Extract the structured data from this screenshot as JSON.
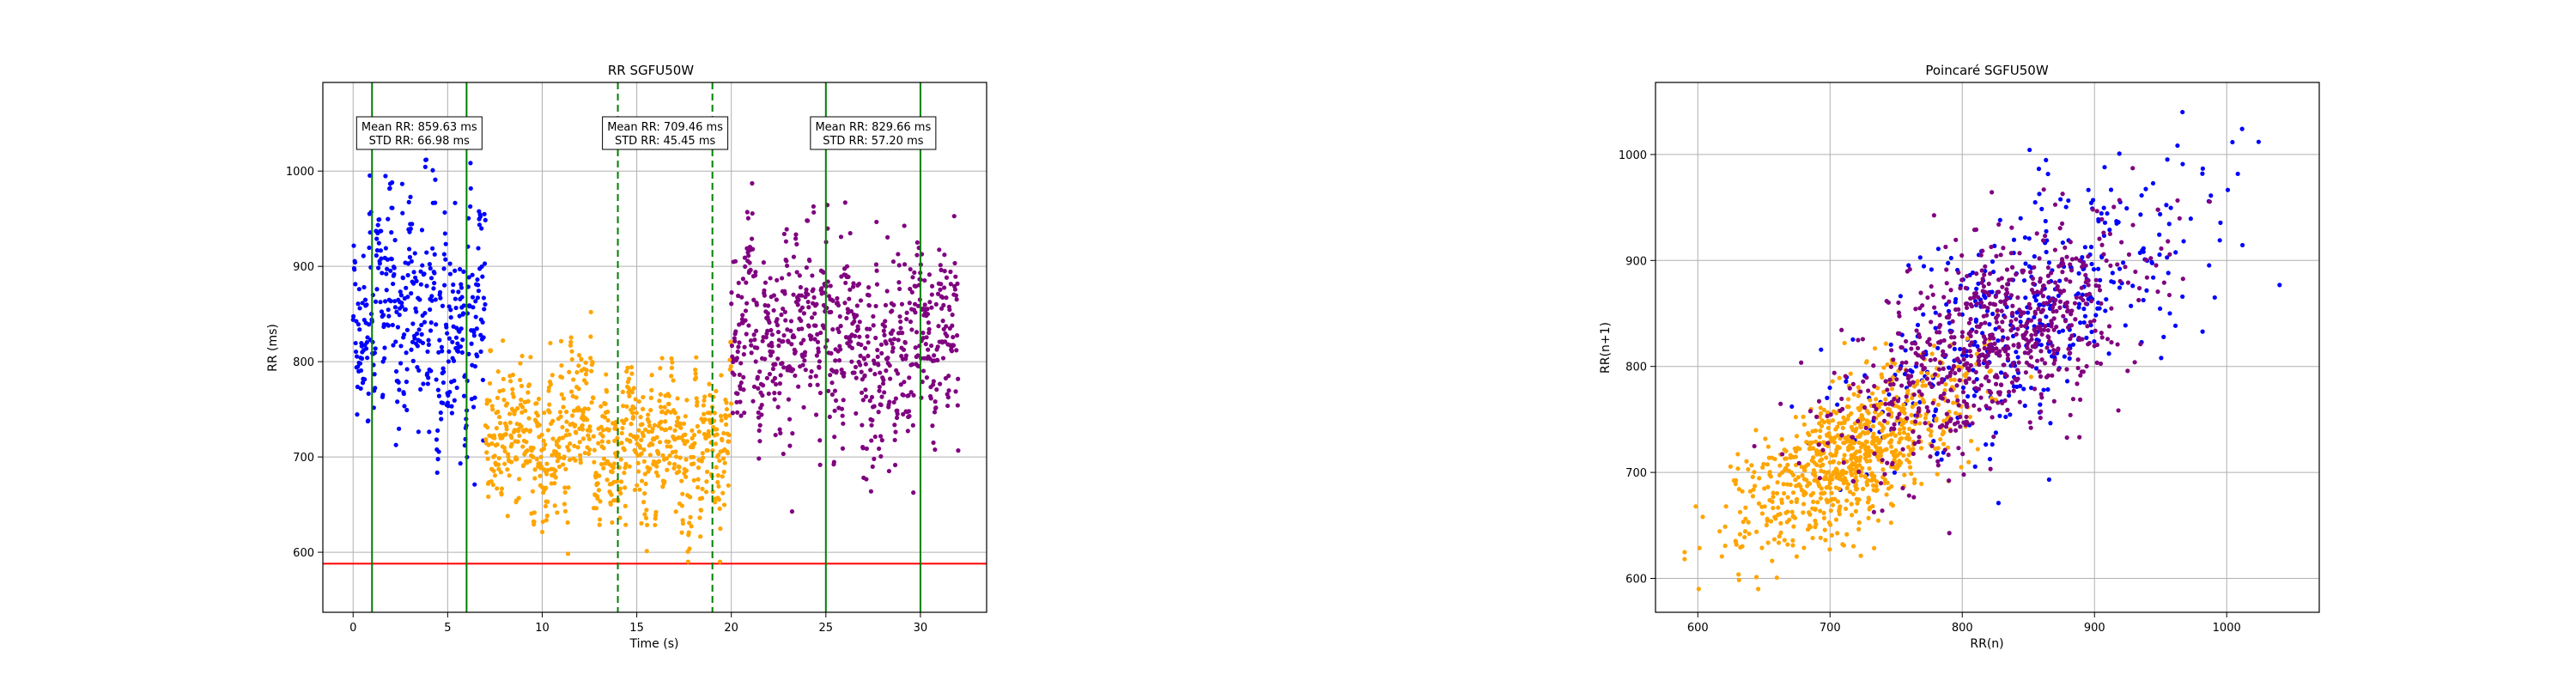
{
  "figure": {
    "background": "#ffffff"
  },
  "chart_data": [
    {
      "type": "scatter",
      "title": "RR SGFU50W",
      "xlabel": "Time (s)",
      "ylabel": "RR (ms)",
      "xlim": [
        -1.6,
        33.5
      ],
      "ylim": [
        537,
        1093
      ],
      "xticks": [
        0,
        5,
        10,
        15,
        20,
        25,
        30
      ],
      "yticks": [
        600,
        700,
        800,
        900,
        1000
      ],
      "grid": true,
      "threshold_line": {
        "y": 588,
        "color": "#ff0000"
      },
      "vlines": [
        {
          "x": 1.0,
          "style": "solid",
          "color": "#008000"
        },
        {
          "x": 6.0,
          "style": "solid",
          "color": "#008000"
        },
        {
          "x": 14.0,
          "style": "dashed",
          "color": "#008000"
        },
        {
          "x": 19.0,
          "style": "dashed",
          "color": "#008000"
        },
        {
          "x": 25.0,
          "style": "solid",
          "color": "#008000"
        },
        {
          "x": 30.0,
          "style": "solid",
          "color": "#008000"
        }
      ],
      "annotations": [
        {
          "cx": 3.5,
          "line1": "Mean RR: 859.63 ms",
          "line2": "STD RR: 66.98 ms"
        },
        {
          "cx": 16.5,
          "line1": "Mean RR: 709.46 ms",
          "line2": "STD RR: 45.45 ms"
        },
        {
          "cx": 27.5,
          "line1": "Mean RR: 829.66 ms",
          "line2": "STD RR: 57.20 ms"
        }
      ],
      "series": [
        {
          "color": "#0000ff",
          "t_range": [
            0,
            7
          ],
          "mean": 859.63,
          "std": 66.98
        },
        {
          "color": "#ffa500",
          "t_range": [
            7,
            20
          ],
          "mean": 709.46,
          "std": 45.45
        },
        {
          "color": "#800080",
          "t_range": [
            20,
            32
          ],
          "mean": 829.66,
          "std": 57.2
        }
      ]
    },
    {
      "type": "scatter",
      "title": "Poincaré SGFU50W",
      "xlabel": "RR(n)",
      "ylabel": "RR(n+1)",
      "xlim": [
        568,
        1070
      ],
      "ylim": [
        568,
        1068
      ],
      "xticks": [
        600,
        700,
        800,
        900,
        1000
      ],
      "yticks": [
        600,
        700,
        800,
        900,
        1000
      ],
      "grid": true,
      "series": [
        {
          "color": "#0000ff",
          "source_series": 0
        },
        {
          "color": "#ffa500",
          "source_series": 1
        },
        {
          "color": "#800080",
          "source_series": 2
        }
      ]
    }
  ]
}
